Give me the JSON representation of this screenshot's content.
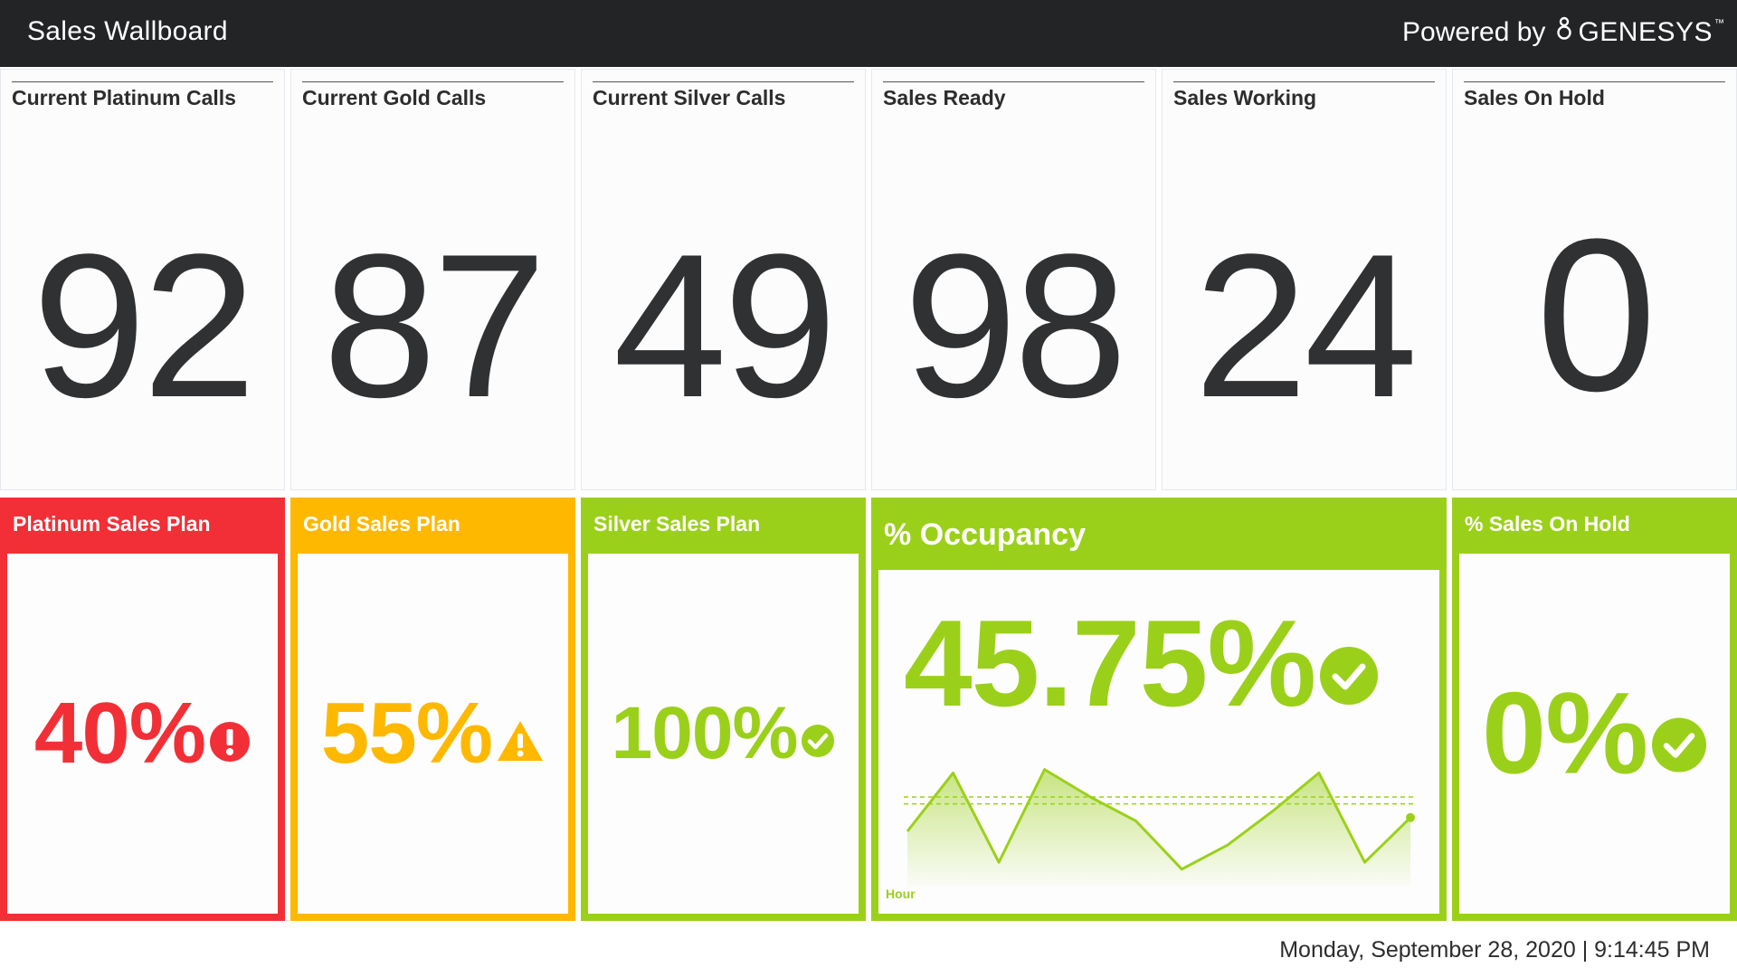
{
  "header": {
    "title": "Sales Wallboard",
    "powered_by": "Powered by",
    "brand": "GENESYS",
    "trademark": "™",
    "brand_icon": "genesys-logo-icon"
  },
  "colors": {
    "red": "#f22f36",
    "amber": "#ffb800",
    "green": "#9bd01a",
    "header_bg": "#222426"
  },
  "metrics": [
    {
      "label": "Current Platinum Calls",
      "value": "92"
    },
    {
      "label": "Current Gold Calls",
      "value": "87"
    },
    {
      "label": "Current Silver Calls",
      "value": "49"
    },
    {
      "label": "Sales Ready",
      "value": "98"
    },
    {
      "label": "Sales Working",
      "value": "24"
    },
    {
      "label": "Sales On Hold",
      "value": "0"
    }
  ],
  "kpis": {
    "platinum": {
      "label": "Platinum Sales Plan",
      "value": "40%",
      "status": "error",
      "icon": "alert-circle-icon"
    },
    "gold": {
      "label": "Gold Sales Plan",
      "value": "55%",
      "status": "warning",
      "icon": "warning-triangle-icon"
    },
    "silver": {
      "label": "Silver Sales Plan",
      "value": "100%",
      "status": "ok",
      "icon": "check-circle-icon"
    },
    "occupancy": {
      "label": "% Occupancy",
      "value": "45.75%",
      "status": "ok",
      "icon": "check-circle-icon",
      "axis_label": "Hour"
    },
    "on_hold": {
      "label": "% Sales On Hold",
      "value": "0%",
      "status": "ok",
      "icon": "check-circle-icon"
    }
  },
  "chart_data": {
    "type": "area",
    "x": [
      1,
      2,
      3,
      4,
      5,
      6,
      7,
      8,
      9,
      10,
      11,
      12
    ],
    "values": [
      40,
      57,
      31,
      58,
      50,
      43,
      29,
      36,
      46,
      57,
      31,
      44
    ],
    "ylim": [
      25,
      65
    ],
    "thresholds": [
      50,
      48
    ],
    "grid": false
  },
  "footer": {
    "datetime": "Monday, September 28, 2020 | 9:14:45 PM"
  }
}
